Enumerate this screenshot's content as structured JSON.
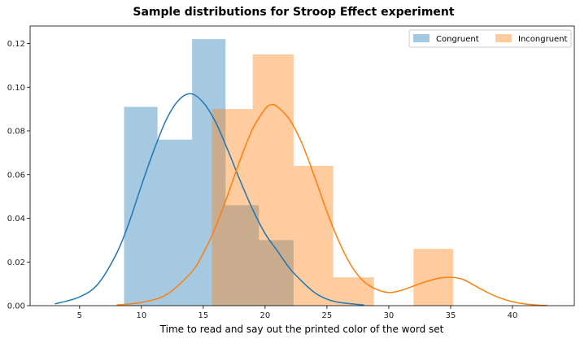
{
  "chart_data": {
    "type": "bar",
    "title": "Sample distributions for Stroop Effect experiment",
    "xlabel": "Time to read and say out the printed color of the word set",
    "ylabel": "",
    "xlim": [
      1.0,
      45.0
    ],
    "ylim": [
      0.0,
      0.128
    ],
    "xticks": [
      5,
      10,
      15,
      20,
      25,
      30,
      35,
      40
    ],
    "yticks": [
      0.0,
      0.02,
      0.04,
      0.06,
      0.08,
      0.1,
      0.12
    ],
    "grid": false,
    "legend_position": "top-right",
    "series": [
      {
        "name": "Congruent",
        "color": "#1f77b4",
        "histogram": [
          {
            "x0": 8.6,
            "x1": 11.3,
            "value": 0.091
          },
          {
            "x0": 11.3,
            "x1": 14.1,
            "value": 0.076
          },
          {
            "x0": 14.1,
            "x1": 16.8,
            "value": 0.122
          },
          {
            "x0": 16.8,
            "x1": 19.5,
            "value": 0.046
          },
          {
            "x0": 19.5,
            "x1": 22.3,
            "value": 0.03
          }
        ],
        "kde": [
          [
            3.0,
            0.0008
          ],
          [
            5.0,
            0.004
          ],
          [
            6.5,
            0.01
          ],
          [
            8.0,
            0.024
          ],
          [
            9.0,
            0.038
          ],
          [
            10.0,
            0.055
          ],
          [
            11.0,
            0.071
          ],
          [
            12.0,
            0.085
          ],
          [
            13.0,
            0.094
          ],
          [
            14.0,
            0.097
          ],
          [
            15.0,
            0.093
          ],
          [
            16.0,
            0.084
          ],
          [
            17.0,
            0.071
          ],
          [
            18.0,
            0.057
          ],
          [
            19.0,
            0.044
          ],
          [
            20.0,
            0.033
          ],
          [
            21.0,
            0.025
          ],
          [
            22.0,
            0.017
          ],
          [
            23.0,
            0.011
          ],
          [
            24.0,
            0.006
          ],
          [
            25.0,
            0.003
          ],
          [
            26.0,
            0.0015
          ],
          [
            28.0,
            0.0003
          ]
        ]
      },
      {
        "name": "Incongruent",
        "color": "#ff7f0e",
        "histogram": [
          {
            "x0": 15.7,
            "x1": 19.0,
            "value": 0.09
          },
          {
            "x0": 19.0,
            "x1": 22.3,
            "value": 0.115
          },
          {
            "x0": 22.3,
            "x1": 25.5,
            "value": 0.064
          },
          {
            "x0": 25.5,
            "x1": 28.8,
            "value": 0.013
          },
          {
            "x0": 28.8,
            "x1": 32.0,
            "value": 0.0
          },
          {
            "x0": 32.0,
            "x1": 35.2,
            "value": 0.026
          }
        ],
        "kde": [
          [
            8.0,
            0.0003
          ],
          [
            10.0,
            0.0015
          ],
          [
            12.0,
            0.005
          ],
          [
            14.0,
            0.015
          ],
          [
            15.0,
            0.024
          ],
          [
            16.0,
            0.036
          ],
          [
            17.0,
            0.051
          ],
          [
            18.0,
            0.067
          ],
          [
            19.0,
            0.081
          ],
          [
            20.0,
            0.09
          ],
          [
            20.5,
            0.092
          ],
          [
            21.0,
            0.091
          ],
          [
            22.0,
            0.085
          ],
          [
            23.0,
            0.074
          ],
          [
            24.0,
            0.059
          ],
          [
            25.0,
            0.043
          ],
          [
            26.0,
            0.029
          ],
          [
            27.0,
            0.018
          ],
          [
            28.0,
            0.011
          ],
          [
            29.0,
            0.0075
          ],
          [
            30.0,
            0.006
          ],
          [
            31.0,
            0.007
          ],
          [
            32.0,
            0.009
          ],
          [
            33.0,
            0.011
          ],
          [
            34.0,
            0.0125
          ],
          [
            35.0,
            0.013
          ],
          [
            36.0,
            0.012
          ],
          [
            37.0,
            0.009
          ],
          [
            38.0,
            0.006
          ],
          [
            39.0,
            0.0035
          ],
          [
            40.0,
            0.0018
          ],
          [
            41.0,
            0.0008
          ],
          [
            42.0,
            0.0003
          ],
          [
            42.8,
            0.0001
          ]
        ]
      }
    ]
  }
}
